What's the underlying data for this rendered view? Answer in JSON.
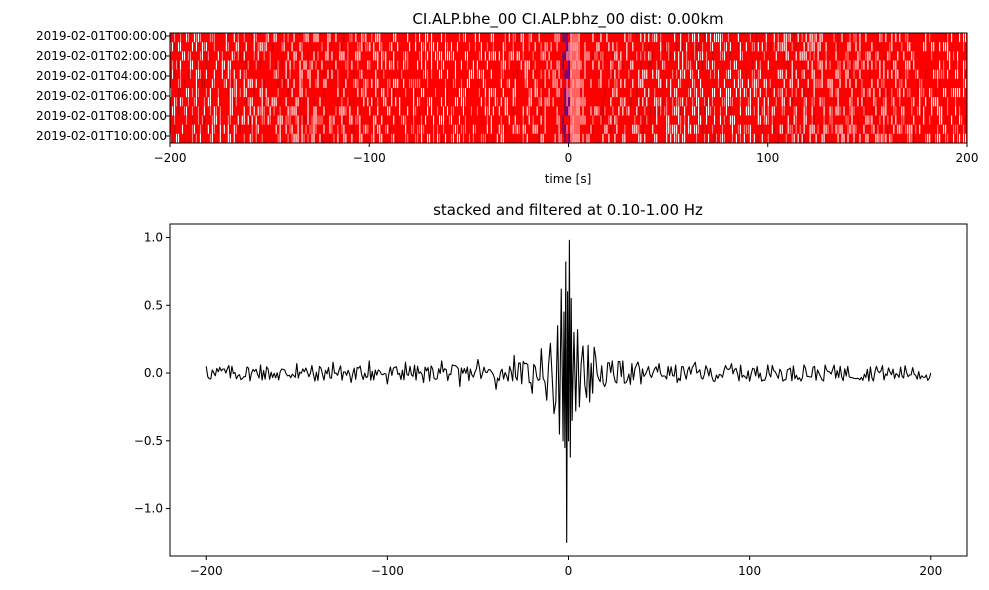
{
  "chart_data": [
    {
      "type": "heatmap",
      "title": "CI.ALP.bhe_00 CI.ALP.bhz_00  dist: 0.00km",
      "xlabel": "time [s]",
      "ylabel": "",
      "xlim": [
        -200,
        200
      ],
      "x_ticks": [
        -200,
        -100,
        0,
        100,
        200
      ],
      "x_tick_labels": [
        "−200",
        "−100",
        "0",
        "100",
        "200"
      ],
      "y_tick_labels": [
        "2019-02-01T00:00:00",
        "2019-02-01T02:00:00",
        "2019-02-01T04:00:00",
        "2019-02-01T06:00:00",
        "2019-02-01T08:00:00",
        "2019-02-01T10:00:00"
      ],
      "colormap": "bwr",
      "colors": {
        "positive": "#ff0000",
        "negative": "#0000ff",
        "zero": "#ffffff"
      },
      "grid": false
    },
    {
      "type": "line",
      "title": "stacked and filtered at 0.10-1.00 Hz",
      "xlabel": "",
      "ylabel": "",
      "xlim": [
        -220,
        220
      ],
      "ylim": [
        -1.35,
        1.1
      ],
      "x_ticks": [
        -200,
        -100,
        0,
        100,
        200
      ],
      "x_tick_labels": [
        "−200",
        "−100",
        "0",
        "100",
        "200"
      ],
      "y_ticks": [
        -1.0,
        -0.5,
        0.0,
        0.5,
        1.0
      ],
      "y_tick_labels": [
        "−1.0",
        "−0.5",
        "0.0",
        "0.5",
        "1.0"
      ],
      "grid": false,
      "series": [
        {
          "color": "#000000",
          "x": [
            -200,
            -195,
            -190,
            -180,
            -170,
            -160,
            -150,
            -140,
            -130,
            -120,
            -110,
            -100,
            -90,
            -80,
            -70,
            -60,
            -50,
            -40,
            -30,
            -20,
            -15,
            -12,
            -10,
            -8,
            -6,
            -5,
            -4,
            -3,
            -2.5,
            -2,
            -1.5,
            -1,
            -0.5,
            0,
            0.5,
            1,
            1.5,
            2,
            3,
            4,
            5,
            6,
            8,
            10,
            15,
            20,
            30,
            40,
            50,
            60,
            70,
            80,
            90,
            100,
            110,
            120,
            130,
            140,
            150,
            160,
            170,
            180,
            190,
            195,
            200
          ],
          "y": [
            0.05,
            -0.02,
            0.03,
            -0.04,
            0.06,
            -0.05,
            0.07,
            -0.06,
            0.08,
            -0.07,
            0.09,
            -0.08,
            0.08,
            -0.07,
            0.09,
            -0.1,
            0.1,
            -0.12,
            0.13,
            -0.15,
            0.18,
            -0.2,
            0.22,
            -0.3,
            0.35,
            -0.45,
            0.62,
            -0.5,
            0.45,
            -0.55,
            0.82,
            -1.25,
            0.6,
            -0.5,
            0.98,
            -0.62,
            0.55,
            -0.35,
            0.3,
            -0.28,
            0.32,
            -0.25,
            0.2,
            -0.18,
            0.12,
            -0.1,
            0.09,
            -0.08,
            0.07,
            -0.07,
            0.08,
            -0.06,
            0.07,
            -0.06,
            0.06,
            -0.05,
            0.06,
            -0.05,
            0.05,
            -0.04,
            0.05,
            -0.04,
            0.04,
            -0.02,
            0.0
          ]
        }
      ]
    }
  ]
}
